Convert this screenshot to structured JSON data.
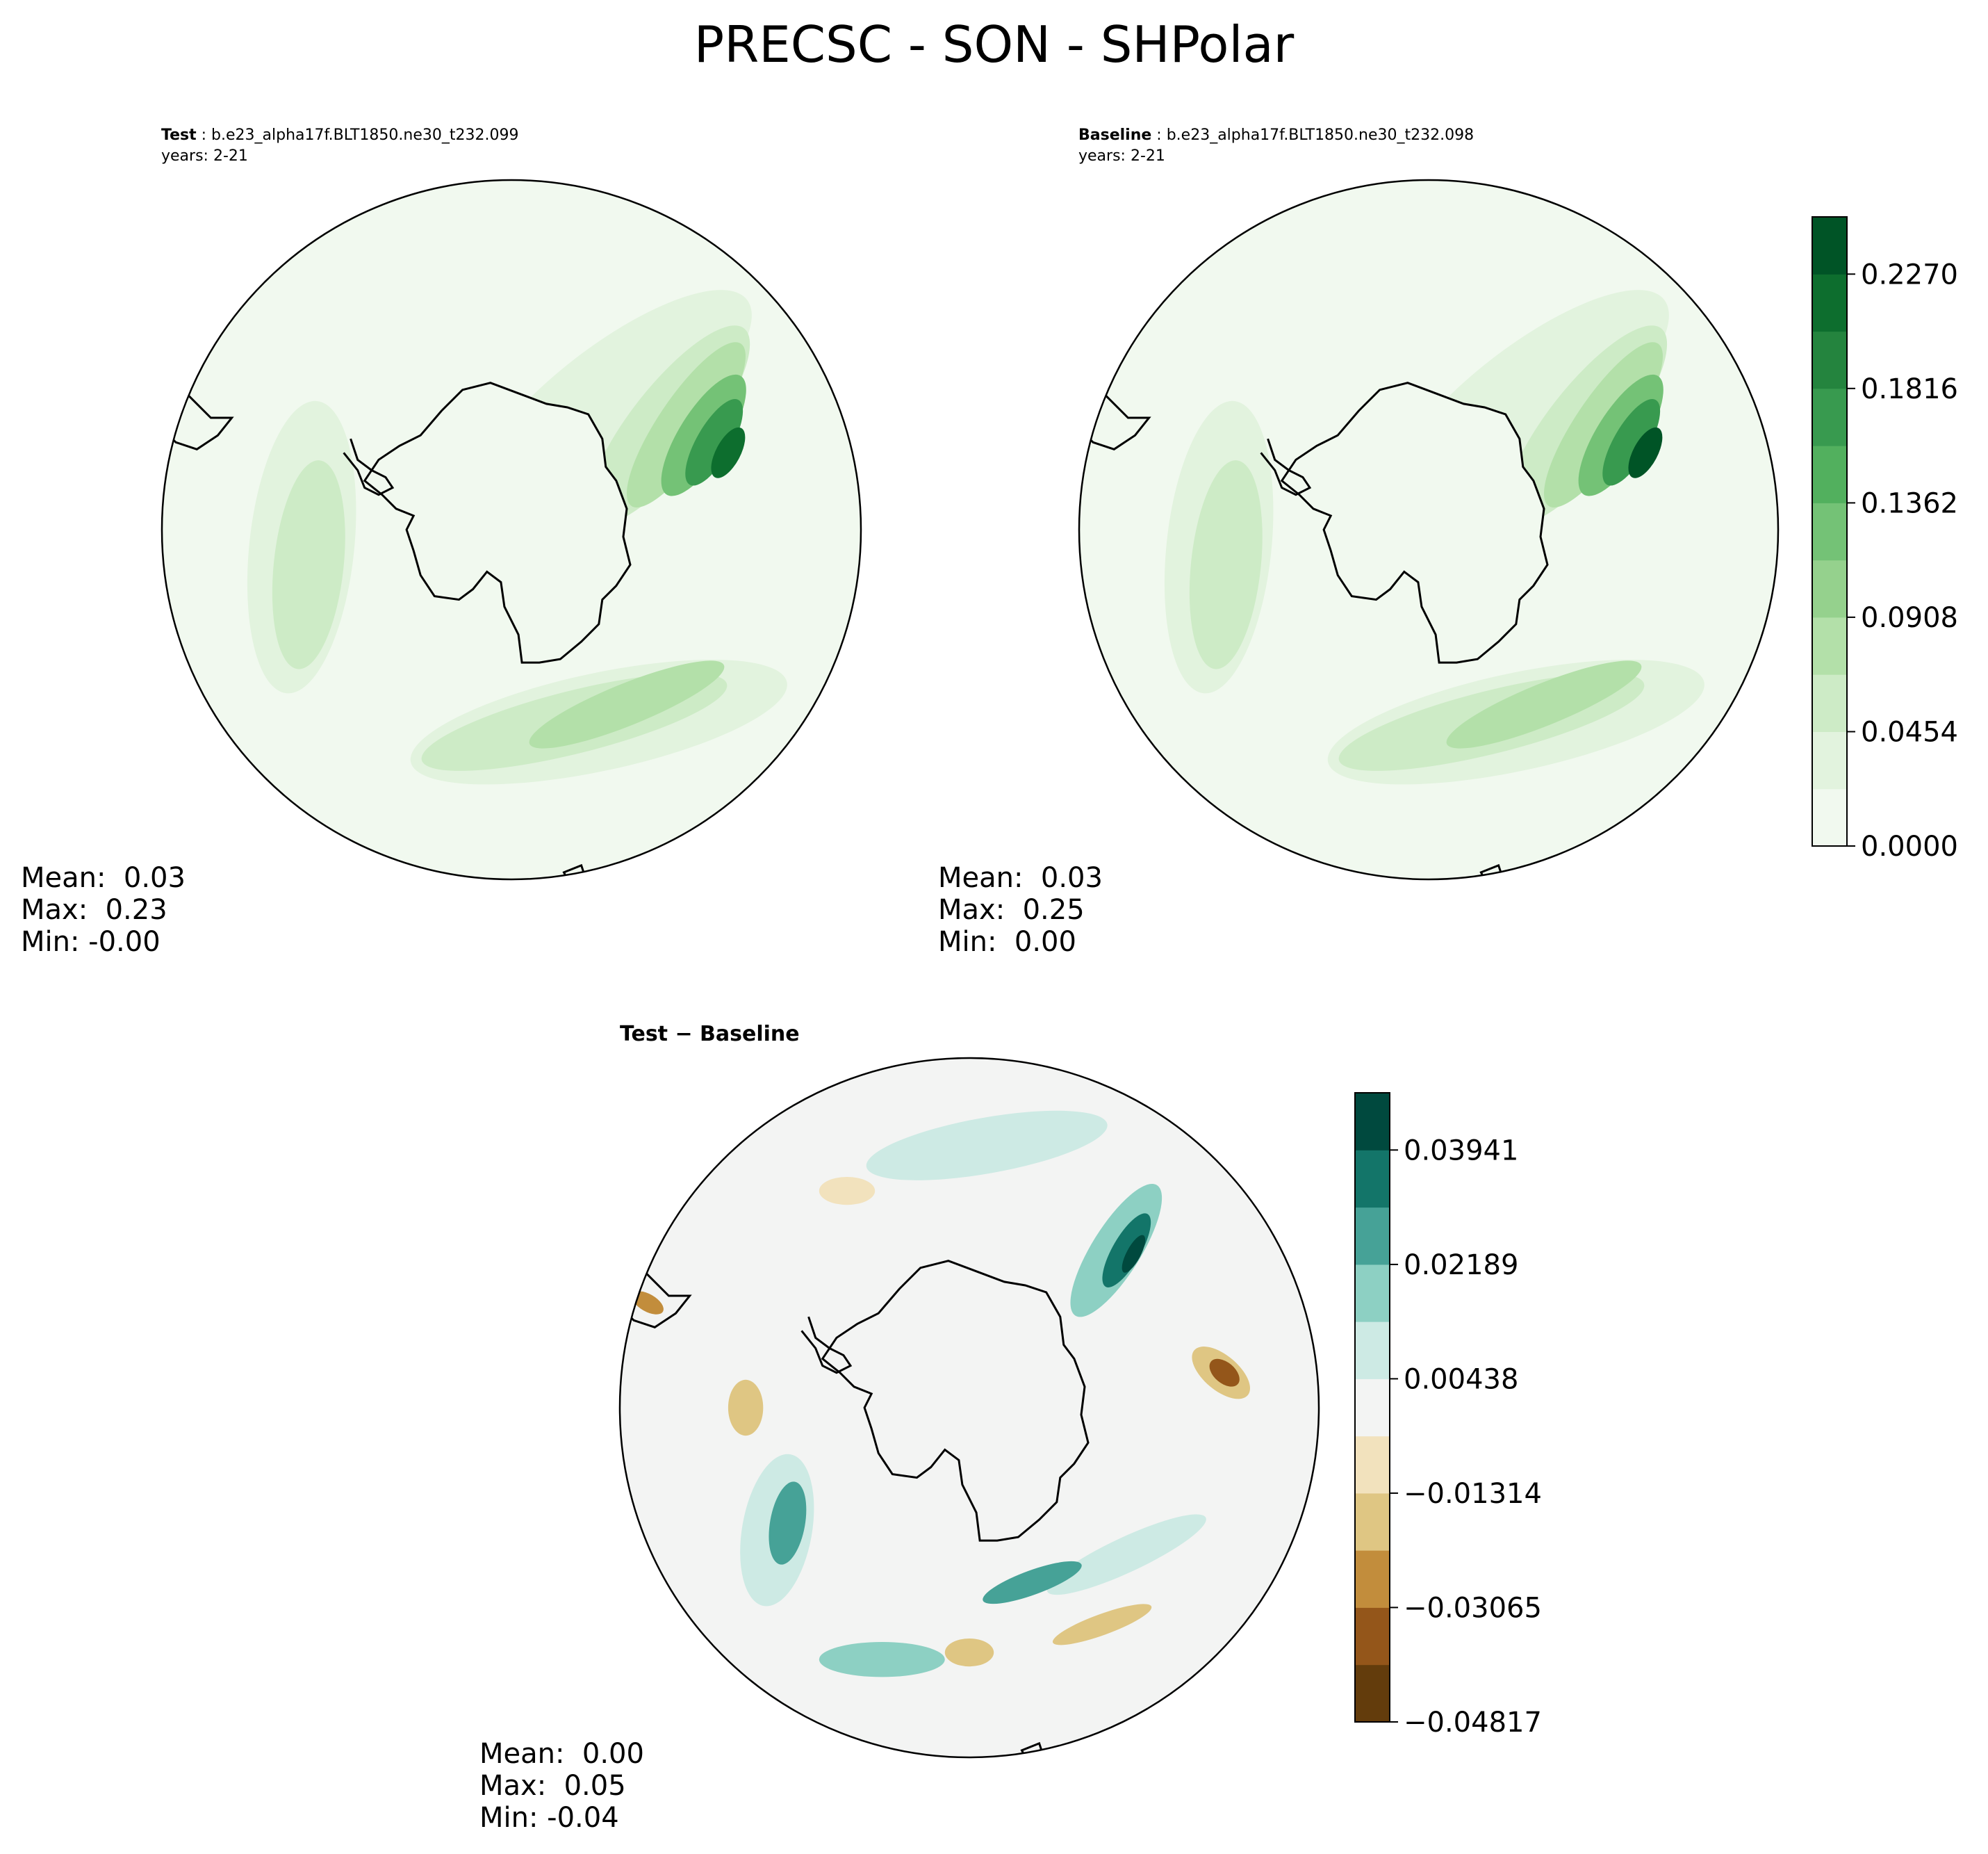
{
  "figure": {
    "title": "PRECSC - SON - SHPolar"
  },
  "panels": {
    "test": {
      "label": "Test",
      "case": "b.e23_alpha17f.BLT1850.ne30_t232.099",
      "years": "years: 2-21",
      "mean": "Mean:  0.03",
      "max": "Max:  0.23",
      "min": "Min: -0.00"
    },
    "baseline": {
      "label": "Baseline",
      "case": "b.e23_alpha17f.BLT1850.ne30_t232.098",
      "years": "years: 2-21",
      "mean": "Mean:  0.03",
      "max": "Max:  0.25",
      "min": "Min:  0.00"
    },
    "diff": {
      "label": "Test − Baseline",
      "mean": "Mean:  0.00",
      "max": "Max:  0.05",
      "min": "Min: -0.04"
    }
  },
  "chart_data": [
    {
      "type": "heatmap",
      "panel": "test",
      "projection": "south polar stereographic",
      "colormap": "Greens",
      "summary": {
        "mean": 0.03,
        "max": 0.23,
        "min": -0.0
      },
      "colorbar": {
        "levels": [
          0.0,
          0.0227,
          0.0454,
          0.0681,
          0.0908,
          0.1135,
          0.1362,
          0.1589,
          0.1816,
          0.2043,
          0.227,
          0.2497
        ],
        "ticks": [
          "0.0000",
          "0.0454",
          "0.0908",
          "0.1362",
          "0.1816",
          "0.2270"
        ]
      }
    },
    {
      "type": "heatmap",
      "panel": "baseline",
      "projection": "south polar stereographic",
      "colormap": "Greens",
      "summary": {
        "mean": 0.03,
        "max": 0.25,
        "min": 0.0
      },
      "colorbar": {
        "levels": [
          0.0,
          0.0227,
          0.0454,
          0.0681,
          0.0908,
          0.1135,
          0.1362,
          0.1589,
          0.1816,
          0.2043,
          0.227,
          0.2497
        ],
        "ticks": [
          "0.0000",
          "0.0454",
          "0.0908",
          "0.1362",
          "0.1816",
          "0.2270"
        ]
      }
    },
    {
      "type": "heatmap",
      "panel": "diff",
      "projection": "south polar stereographic",
      "colormap": "BrBG",
      "summary": {
        "mean": 0.0,
        "max": 0.05,
        "min": -0.04
      },
      "colorbar": {
        "levels": [
          -0.04817,
          -0.03941,
          -0.03065,
          -0.02189,
          -0.01314,
          -0.00438,
          0.00438,
          0.01314,
          0.02189,
          0.03065,
          0.03941,
          0.04817
        ],
        "ticks": [
          "−0.04817",
          "−0.03065",
          "−0.01314",
          "0.00438",
          "0.02189",
          "0.03941"
        ]
      }
    }
  ],
  "colors": {
    "greens": [
      "#f1f9ef",
      "#e2f3de",
      "#cdebc6",
      "#b3e0a9",
      "#95d18d",
      "#74c276",
      "#52b05e",
      "#389a4f",
      "#24843e",
      "#0d6e2e",
      "#005426"
    ],
    "brbg": [
      "#633c0c",
      "#94561a",
      "#c28d3c",
      "#dfc683",
      "#f2e2bd",
      "#f3f4f3",
      "#cdeae4",
      "#8dd0c3",
      "#46a297",
      "#137569",
      "#00493e"
    ]
  }
}
